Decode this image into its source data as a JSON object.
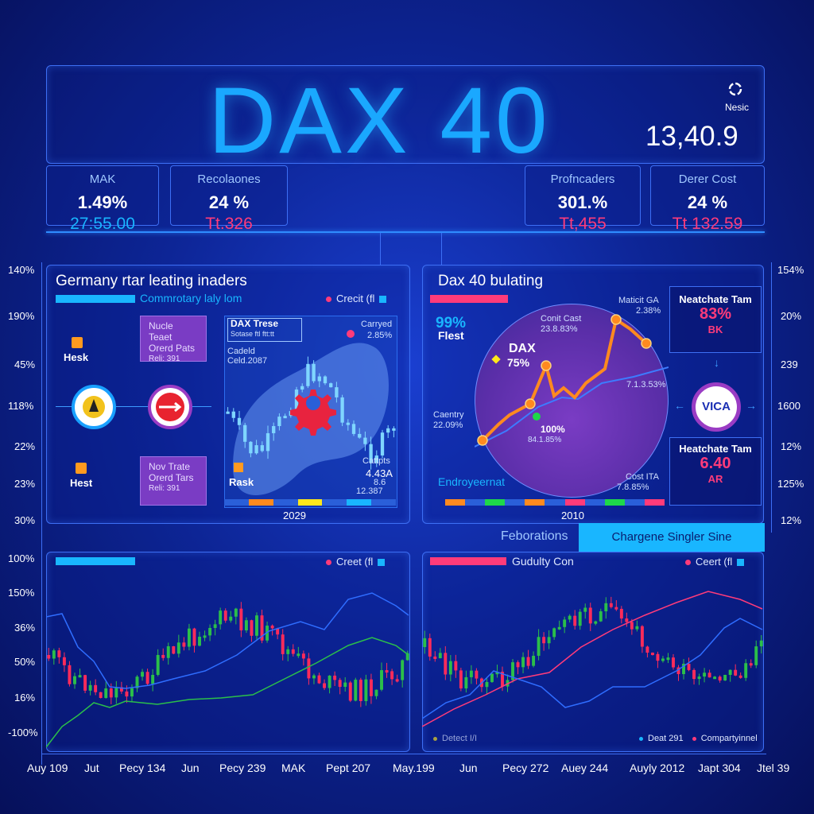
{
  "header": {
    "title": "DAX 40",
    "brand_label": "Nesic",
    "index_value": "13,40.9"
  },
  "stats": [
    {
      "label": "MAK",
      "pct": "1.49%",
      "value": "27:55.00",
      "value_color": "#19b6ff"
    },
    {
      "label": "Recolaones",
      "pct": "24 %",
      "value": "Tt.326",
      "value_color": "#ff3b7a"
    },
    {
      "label": "Profncaders",
      "pct": "301.%",
      "value": "Tt,455",
      "value_color": "#ff3b7a"
    },
    {
      "label": "Derer Cost",
      "pct": "24 %",
      "value": "Tt 132.59",
      "value_color": "#ff3b7a"
    }
  ],
  "left_axis": [
    "140%",
    "190%",
    "45%",
    "118%",
    "22%",
    "23%",
    "30%",
    "100%",
    "150%",
    "36%",
    "50%",
    "16%",
    "-100%"
  ],
  "right_axis": [
    "154%",
    "20%",
    "239",
    "1600",
    "12%",
    "125%",
    "12%"
  ],
  "panel_left": {
    "title": "Germany rtar leating inaders",
    "subtitle": "Commrotary laly lom",
    "legend": "Crecit (fl",
    "hesk1": "Hesk",
    "hesk2": "Hest",
    "tag1": [
      "Nucle Teaet",
      "Orerd Pats",
      "Reli: 391"
    ],
    "tag2": [
      "Nov Trate",
      "Orerd Tars",
      "Reli: 391"
    ],
    "chart_label": "DAX Trese",
    "chart_sub1": "Sotase  ftl ftt:tt",
    "chart_sub2": "Cadeld",
    "chart_sub3": "Celd.2087",
    "carryed": "Carryed",
    "carryed_val": "2.85%",
    "cattipts": "Cattpts",
    "cattipts_val": "4.43A",
    "cattipts_val2": "8.6",
    "cattipts_val3": "12.387",
    "rask": "Rask",
    "year": "2029"
  },
  "panel_right": {
    "title": "Dax 40 bulating",
    "big_pct": "99%",
    "big_label": "Flest",
    "dax_label": "DAX",
    "dax_pct": "75%",
    "centry": "Caentry",
    "centry_val": "22.09%",
    "cont": "Conit Cast",
    "cont_val": "23.8.83%",
    "matict": "Maticit GA",
    "matict_val": "2.38%",
    "hundred": "100%",
    "hundred_sub": "84.1.85%",
    "right_val": "7.1.3.53%",
    "endro": "Endroyeernat",
    "cost_ita": "Cost ITA",
    "cost_ita_val": "7.8.85%",
    "year": "2010"
  },
  "side_cards": [
    {
      "title": "Neatchate Tam",
      "pct": "83%",
      "sub": "BK",
      "pct_color": "#ff3b7a",
      "sub_color": "#ff3b7a"
    },
    {
      "title": "Heatchate Tam",
      "pct": "6.40",
      "sub": "AR",
      "pct_color": "#ff3b7a",
      "sub_color": "#ff3b7a"
    }
  ],
  "visa_label": "VICA",
  "tabs": {
    "inactive": "Feborations",
    "active": "Chargene Singler Sine"
  },
  "bottom_left": {
    "legend": "Creet (fl",
    "footer": "Detect I/I"
  },
  "bottom_right": {
    "title": "Gudulty Con",
    "legend": "Ceert (fl",
    "footer1": "Deat 291",
    "footer2": "Compartyinnel"
  },
  "x_axis": [
    "Auy 109",
    "Jut",
    "Pecy 134",
    "Jun",
    "Pecy 239",
    "MAK",
    "Pept 207",
    "May.199",
    "Jun",
    "Pecy 272",
    "Auey 244",
    "Auyly 2012",
    "Japt 304",
    "Jtel 39"
  ],
  "colors": {
    "cyan": "#19b6ff",
    "pink": "#ff3b7a",
    "purple": "#7a3cc4",
    "orange": "#ff8a1f"
  }
}
